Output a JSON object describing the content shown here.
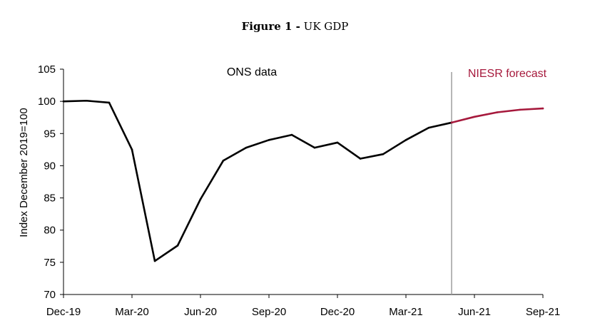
{
  "figure_title": {
    "label": "Figure 1 -",
    "name": "UK GDP"
  },
  "chart_data": {
    "type": "line",
    "title": "Figure 1 - UK GDP",
    "ylabel": "Index December 2019=100",
    "xlabel": "",
    "ylim": [
      70,
      105
    ],
    "yticks": [
      70,
      75,
      80,
      85,
      90,
      95,
      100,
      105
    ],
    "x_tick_labels": [
      "Dec-19",
      "Mar-20",
      "Jun-20",
      "Sep-20",
      "Dec-20",
      "Mar-21",
      "Jun-21",
      "Sep-21"
    ],
    "x_tick_month_index": [
      0,
      3,
      6,
      9,
      12,
      15,
      18,
      21
    ],
    "grid": false,
    "series": [
      {
        "name": "ONS data",
        "color": "#000000",
        "month_index": [
          0,
          1,
          2,
          3,
          4,
          5,
          6,
          7,
          8,
          9,
          10,
          11,
          12,
          13,
          14,
          15,
          16,
          17
        ],
        "values": [
          100.0,
          100.1,
          99.8,
          92.5,
          75.2,
          77.6,
          84.8,
          90.8,
          92.8,
          94.0,
          94.8,
          92.8,
          93.6,
          91.1,
          91.8,
          94.0,
          95.9,
          96.7
        ]
      },
      {
        "name": "NIESR forecast",
        "color": "#a6193c",
        "month_index": [
          17,
          18,
          19,
          20,
          21
        ],
        "values": [
          96.7,
          97.6,
          98.3,
          98.7,
          98.9
        ]
      }
    ],
    "divider_month_index": 17,
    "annotations": {
      "ons": "ONS data",
      "forecast": "NIESR forecast"
    }
  }
}
